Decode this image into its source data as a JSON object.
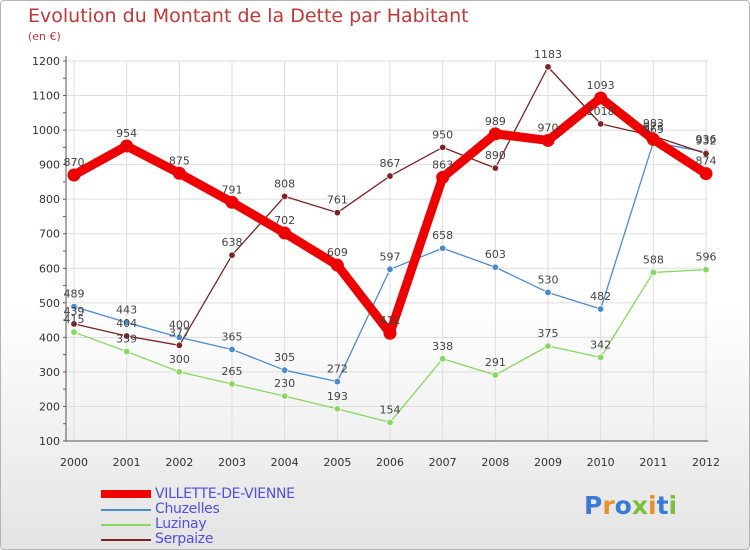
{
  "title": "Evolution du Montant de la Dette par Habitant",
  "subtitle": "(en €)",
  "logo": {
    "text": "Proxiti",
    "colors": [
      "#3a7bd5",
      "#e8902a",
      "#3a7bd5",
      "#7bbf3a",
      "#e8902a",
      "#3a7bd5",
      "#7bbf3a"
    ]
  },
  "chart_data": {
    "type": "line",
    "x": [
      "2000",
      "2001",
      "2002",
      "2003",
      "2004",
      "2005",
      "2006",
      "2007",
      "2008",
      "2009",
      "2010",
      "2011",
      "2012"
    ],
    "ylim": [
      100,
      1200
    ],
    "yticks": [
      100,
      200,
      300,
      400,
      500,
      600,
      700,
      800,
      900,
      1000,
      1100,
      1200
    ],
    "grid": true,
    "legend_position": "bottom-left",
    "series": [
      {
        "name": "VILLETTE-DE-VIENNE",
        "color": "#ee0000",
        "values": [
          870,
          954,
          875,
          791,
          702,
          609,
          412,
          863,
          989,
          970,
          1093,
          973,
          874
        ]
      },
      {
        "name": "Chuzelles",
        "color": "#4a8bd0",
        "values": [
          489,
          443,
          400,
          365,
          305,
          272,
          597,
          658,
          603,
          530,
          482,
          965,
          936
        ]
      },
      {
        "name": "Luzinay",
        "color": "#88d860",
        "values": [
          415,
          359,
          300,
          265,
          230,
          193,
          154,
          338,
          291,
          375,
          342,
          588,
          596
        ]
      },
      {
        "name": "Serpaize",
        "color": "#7a2424",
        "values": [
          439,
          404,
          377,
          638,
          808,
          761,
          867,
          950,
          890,
          1183,
          1018,
          983,
          932
        ]
      }
    ]
  }
}
